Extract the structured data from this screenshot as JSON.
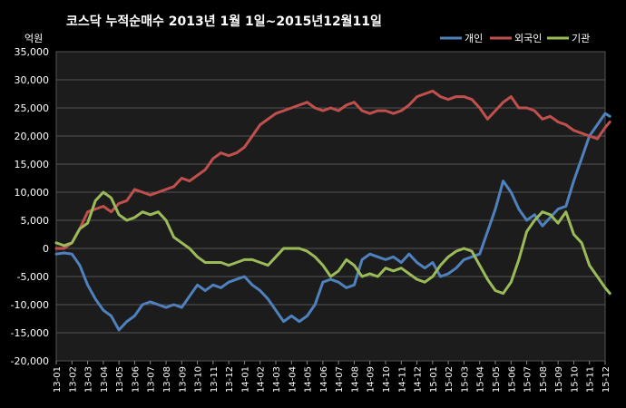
{
  "chart_data": {
    "type": "line",
    "title": "코스닥 누적순매수 2013년 1월 1일~2015년12월11일",
    "ylabel": "억원",
    "ylim": [
      -20000,
      35000
    ],
    "y_ticks": [
      35000,
      30000,
      25000,
      20000,
      15000,
      10000,
      5000,
      0,
      -5000,
      -10000,
      -15000,
      -20000
    ],
    "y_tick_labels": [
      "35,000",
      "30,000",
      "25,000",
      "20,000",
      "15,000",
      "10,000",
      "5,000",
      "0",
      "-5,000",
      "-10,000",
      "-15,000",
      "-20,000"
    ],
    "grid": true,
    "legend_position": "top-right",
    "categories": [
      "13-01",
      "13-02",
      "13-03",
      "13-04",
      "13-05",
      "13-06",
      "13-07",
      "13-08",
      "13-09",
      "13-10",
      "13-11",
      "13-12",
      "14-01",
      "14-02",
      "14-03",
      "14-04",
      "14-05",
      "14-06",
      "14-07",
      "14-08",
      "14-09",
      "14-10",
      "14-11",
      "14-12",
      "15-01",
      "15-02",
      "15-03",
      "15-04",
      "15-05",
      "15-06",
      "15-07",
      "15-08",
      "15-09",
      "15-10",
      "15-11",
      "15-12"
    ],
    "series": [
      {
        "name": "개인",
        "color": "#4F81BD",
        "x": [
          0,
          0.5,
          1,
          1.5,
          2,
          2.5,
          3,
          3.5,
          4,
          4.5,
          5,
          5.5,
          6,
          6.5,
          7,
          7.5,
          8,
          8.5,
          9,
          9.5,
          10,
          10.5,
          11,
          11.5,
          12,
          12.5,
          13,
          13.5,
          14,
          14.5,
          15,
          15.5,
          16,
          16.5,
          17,
          17.5,
          18,
          18.5,
          19,
          19.5,
          20,
          20.5,
          21,
          21.5,
          22,
          22.5,
          23,
          23.5,
          24,
          24.5,
          25,
          25.5,
          26,
          26.5,
          27,
          27.5,
          28,
          28.5,
          29,
          29.5,
          30,
          30.5,
          31,
          31.5,
          32,
          32.5,
          33,
          33.5,
          34,
          34.5,
          35,
          35.3
        ],
        "values": [
          -1000,
          -800,
          -1000,
          -3000,
          -6500,
          -9000,
          -11000,
          -12000,
          -14500,
          -13000,
          -12000,
          -10000,
          -9500,
          -10000,
          -10500,
          -10000,
          -10500,
          -8500,
          -6500,
          -7500,
          -6500,
          -7000,
          -6000,
          -5500,
          -5000,
          -6500,
          -7500,
          -9000,
          -11000,
          -13000,
          -12000,
          -13000,
          -12000,
          -10000,
          -6000,
          -5500,
          -6000,
          -7000,
          -6500,
          -2000,
          -1000,
          -1500,
          -2000,
          -1500,
          -2500,
          -1000,
          -2500,
          -3500,
          -2500,
          -5000,
          -4500,
          -3500,
          -2000,
          -1500,
          -1000,
          3000,
          7000,
          12000,
          10000,
          7000,
          5000,
          6000,
          4000,
          5500,
          7000,
          7500,
          12000,
          16000,
          20000,
          22000,
          24000,
          23500
        ]
      },
      {
        "name": "외국인",
        "color": "#C0504D",
        "x": [
          0,
          0.5,
          1,
          1.5,
          2,
          2.5,
          3,
          3.5,
          4,
          4.5,
          5,
          5.5,
          6,
          6.5,
          7,
          7.5,
          8,
          8.5,
          9,
          9.5,
          10,
          10.5,
          11,
          11.5,
          12,
          12.5,
          13,
          13.5,
          14,
          14.5,
          15,
          15.5,
          16,
          16.5,
          17,
          17.5,
          18,
          18.5,
          19,
          19.5,
          20,
          20.5,
          21,
          21.5,
          22,
          22.5,
          23,
          23.5,
          24,
          24.5,
          25,
          25.5,
          26,
          26.5,
          27,
          27.5,
          28,
          28.5,
          29,
          29.5,
          30,
          30.5,
          31,
          31.5,
          32,
          32.5,
          33,
          33.5,
          34,
          34.5,
          35,
          35.3
        ],
        "values": [
          0,
          0,
          1000,
          3500,
          6500,
          7000,
          7500,
          6500,
          8000,
          8500,
          10500,
          10000,
          9500,
          10000,
          10500,
          11000,
          12500,
          12000,
          13000,
          14000,
          16000,
          17000,
          16500,
          17000,
          18000,
          20000,
          22000,
          23000,
          24000,
          24500,
          25000,
          25500,
          26000,
          25000,
          24500,
          25000,
          24500,
          25500,
          26000,
          24500,
          24000,
          24500,
          24500,
          24000,
          24500,
          25500,
          27000,
          27500,
          28000,
          27000,
          26500,
          27000,
          27000,
          26500,
          25000,
          23000,
          24500,
          26000,
          27000,
          25000,
          25000,
          24500,
          23000,
          23500,
          22500,
          22000,
          21000,
          20500,
          20000,
          19500,
          21500,
          22500
        ]
      },
      {
        "name": "기관",
        "color": "#9BBB59",
        "x": [
          0,
          0.5,
          1,
          1.5,
          2,
          2.5,
          3,
          3.5,
          4,
          4.5,
          5,
          5.5,
          6,
          6.5,
          7,
          7.5,
          8,
          8.5,
          9,
          9.5,
          10,
          10.5,
          11,
          11.5,
          12,
          12.5,
          13,
          13.5,
          14,
          14.5,
          15,
          15.5,
          16,
          16.5,
          17,
          17.5,
          18,
          18.5,
          19,
          19.5,
          20,
          20.5,
          21,
          21.5,
          22,
          22.5,
          23,
          23.5,
          24,
          24.5,
          25,
          25.5,
          26,
          26.5,
          27,
          27.5,
          28,
          28.5,
          29,
          29.5,
          30,
          30.5,
          31,
          31.5,
          32,
          32.5,
          33,
          33.5,
          34,
          34.5,
          35,
          35.3
        ],
        "values": [
          1000,
          500,
          1000,
          3500,
          4500,
          8500,
          10000,
          9000,
          6000,
          5000,
          5500,
          6500,
          6000,
          6500,
          5000,
          2000,
          1000,
          0,
          -1500,
          -2500,
          -2500,
          -2500,
          -3000,
          -2500,
          -2000,
          -2000,
          -2500,
          -3000,
          -1500,
          0,
          0,
          0,
          -500,
          -1500,
          -3000,
          -5000,
          -4000,
          -2000,
          -3000,
          -5000,
          -4500,
          -5000,
          -3500,
          -4000,
          -3500,
          -4500,
          -5500,
          -6000,
          -5000,
          -3000,
          -1500,
          -500,
          0,
          -500,
          -3000,
          -5500,
          -7500,
          -8000,
          -6000,
          -2000,
          3000,
          5000,
          6500,
          6000,
          4500,
          6500,
          2500,
          1000,
          -3000,
          -5000,
          -7000,
          -8000
        ]
      }
    ]
  }
}
